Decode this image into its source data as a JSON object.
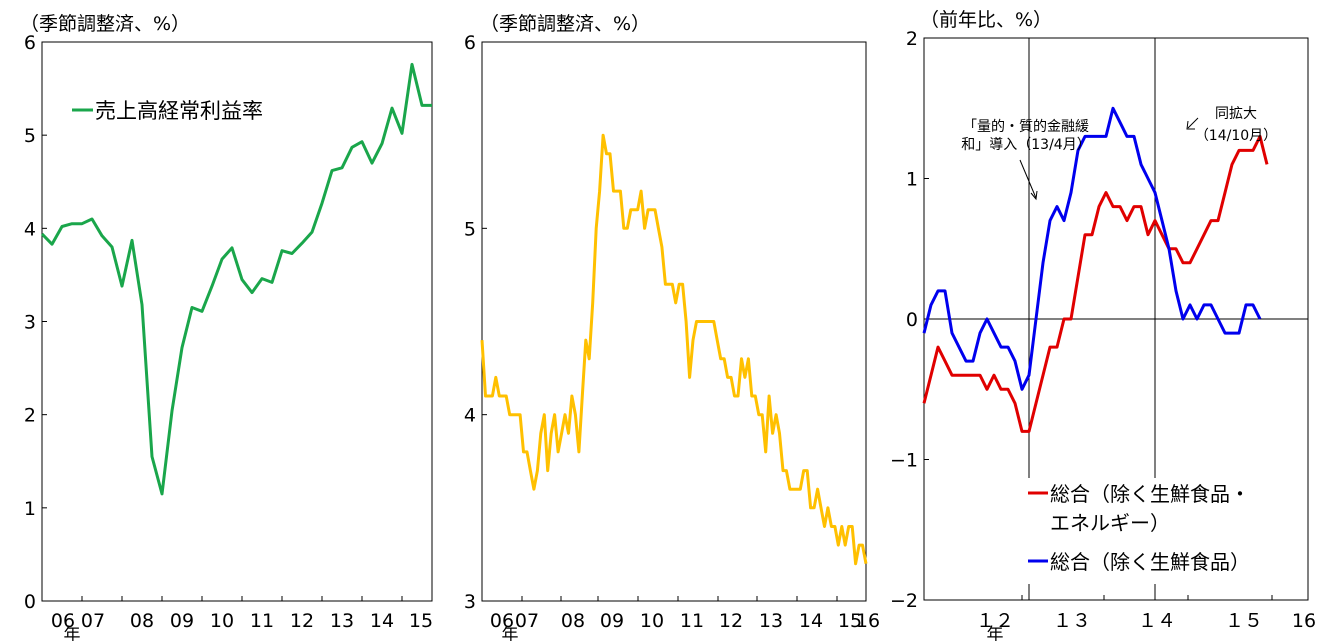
{
  "chart_data": [
    {
      "type": "line",
      "unit_label": "（季節調整済、%）",
      "ylim": [
        0,
        6
      ],
      "yticks": [
        "0",
        "1",
        "2",
        "3",
        "4",
        "5",
        "6"
      ],
      "x_tick_labels": [
        "06",
        "07",
        "08",
        "09",
        "10",
        "11",
        "12",
        "13",
        "14",
        "15"
      ],
      "year_marker": "年",
      "legend_position": "top-left",
      "series": [
        {
          "name": "売上高経常利益率",
          "color": "#1aa64b",
          "values": [
            3.94,
            3.83,
            4.02,
            4.05,
            4.05,
            4.1,
            3.92,
            3.8,
            3.38,
            3.87,
            3.18,
            1.55,
            1.15,
            2.04,
            2.72,
            3.15,
            3.11,
            3.38,
            3.67,
            3.79,
            3.45,
            3.31,
            3.46,
            3.42,
            3.76,
            3.73,
            3.84,
            3.96,
            4.27,
            4.62,
            4.65,
            4.87,
            4.93,
            4.7,
            4.91,
            5.29,
            5.02,
            5.76,
            5.32,
            5.32
          ]
        }
      ]
    },
    {
      "type": "line",
      "unit_label": "（季節調整済、%）",
      "ylim": [
        3,
        6
      ],
      "yticks": [
        "3",
        "4",
        "5",
        "6"
      ],
      "x_tick_labels": [
        "06",
        "07",
        "08",
        "09",
        "10",
        "11",
        "12",
        "13",
        "14",
        "15",
        "16"
      ],
      "year_marker": "年",
      "series": [
        {
          "name": "",
          "color": "#ffc000",
          "values": [
            4.4,
            4.1,
            4.1,
            4.1,
            4.2,
            4.1,
            4.1,
            4.1,
            4.0,
            4.0,
            4.0,
            4.0,
            3.8,
            3.8,
            3.7,
            3.6,
            3.7,
            3.9,
            4.0,
            3.7,
            3.9,
            4.0,
            3.8,
            3.9,
            4.0,
            3.9,
            4.1,
            4.0,
            3.8,
            4.1,
            4.4,
            4.3,
            4.6,
            5.0,
            5.2,
            5.5,
            5.4,
            5.4,
            5.2,
            5.2,
            5.2,
            5.0,
            5.0,
            5.1,
            5.1,
            5.1,
            5.2,
            5.0,
            5.1,
            5.1,
            5.1,
            5.0,
            4.9,
            4.7,
            4.7,
            4.7,
            4.6,
            4.7,
            4.7,
            4.5,
            4.2,
            4.4,
            4.5,
            4.5,
            4.5,
            4.5,
            4.5,
            4.5,
            4.4,
            4.3,
            4.3,
            4.2,
            4.2,
            4.1,
            4.1,
            4.3,
            4.2,
            4.3,
            4.1,
            4.1,
            4.0,
            4.0,
            3.8,
            4.1,
            3.9,
            4.0,
            3.9,
            3.7,
            3.7,
            3.6,
            3.6,
            3.6,
            3.6,
            3.7,
            3.7,
            3.5,
            3.5,
            3.6,
            3.5,
            3.4,
            3.5,
            3.4,
            3.4,
            3.3,
            3.4,
            3.3,
            3.4,
            3.4,
            3.2,
            3.3,
            3.3,
            3.2
          ]
        }
      ]
    },
    {
      "type": "line",
      "unit_label": "（前年比、%）",
      "ylim": [
        -2,
        2
      ],
      "yticks": [
        "−2",
        "−1",
        "0",
        "1",
        "2"
      ],
      "x_tick_labels": [
        "１２",
        "１３",
        "１４",
        "１５",
        "16"
      ],
      "year_marker": "年",
      "legend_position": "bottom-right",
      "annotations": [
        {
          "lines": [
            "「量的・質的金融緩",
            "和」導入（13/4月）"
          ],
          "x": 2013.25
        },
        {
          "lines": [
            "同拡大",
            "（14/10月）"
          ],
          "x": 2014.75
        }
      ],
      "series": [
        {
          "name": "総合（除く生鮮食品・エネルギー）",
          "color": "#e00000",
          "values": [
            -0.6,
            -0.4,
            -0.2,
            -0.3,
            -0.4,
            -0.4,
            -0.4,
            -0.4,
            -0.4,
            -0.5,
            -0.4,
            -0.5,
            -0.5,
            -0.6,
            -0.8,
            -0.8,
            -0.6,
            -0.4,
            -0.2,
            -0.2,
            0.0,
            0.0,
            0.3,
            0.6,
            0.6,
            0.8,
            0.9,
            0.8,
            0.8,
            0.7,
            0.8,
            0.8,
            0.6,
            0.7,
            0.6,
            0.5,
            0.5,
            0.4,
            0.4,
            0.5,
            0.6,
            0.7,
            0.7,
            0.9,
            1.1,
            1.2,
            1.2,
            1.2,
            1.3,
            1.1
          ]
        },
        {
          "name": "総合（除く生鮮食品）",
          "color": "#0000ee",
          "values": [
            -0.1,
            0.1,
            0.2,
            0.2,
            -0.1,
            -0.2,
            -0.3,
            -0.3,
            -0.1,
            0.0,
            -0.1,
            -0.2,
            -0.2,
            -0.3,
            -0.5,
            -0.4,
            0.0,
            0.4,
            0.7,
            0.8,
            0.7,
            0.9,
            1.2,
            1.3,
            1.3,
            1.3,
            1.3,
            1.5,
            1.4,
            1.3,
            1.3,
            1.1,
            1.0,
            0.9,
            0.7,
            0.5,
            0.2,
            0.0,
            0.1,
            0.0,
            0.1,
            0.1,
            0.0,
            -0.1,
            -0.1,
            -0.1,
            0.1,
            0.1,
            0.0
          ]
        }
      ]
    }
  ]
}
